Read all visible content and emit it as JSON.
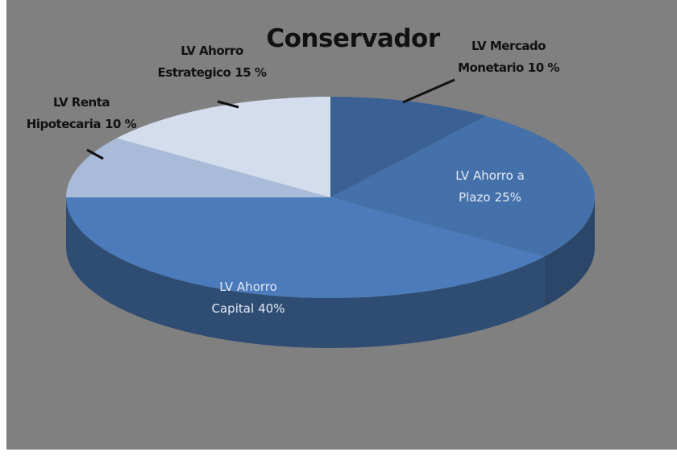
{
  "chart_data": {
    "type": "pie3d",
    "title": "Conservador",
    "categories": [
      "LV Mercado Monetario",
      "LV Ahorro a Plazo",
      "LV Ahorro Capital",
      "LV Renta Hipotecaria",
      "LV Ahorro Estrategico"
    ],
    "values": [
      10,
      25,
      40,
      10,
      15
    ],
    "value_labels": [
      "10 %",
      "25%",
      "40%",
      "10 %",
      "15 %"
    ],
    "colors": [
      "#3b6194",
      "#4571aa",
      "#4b7bba",
      "#a8bbd9",
      "#d3ddee"
    ]
  }
}
